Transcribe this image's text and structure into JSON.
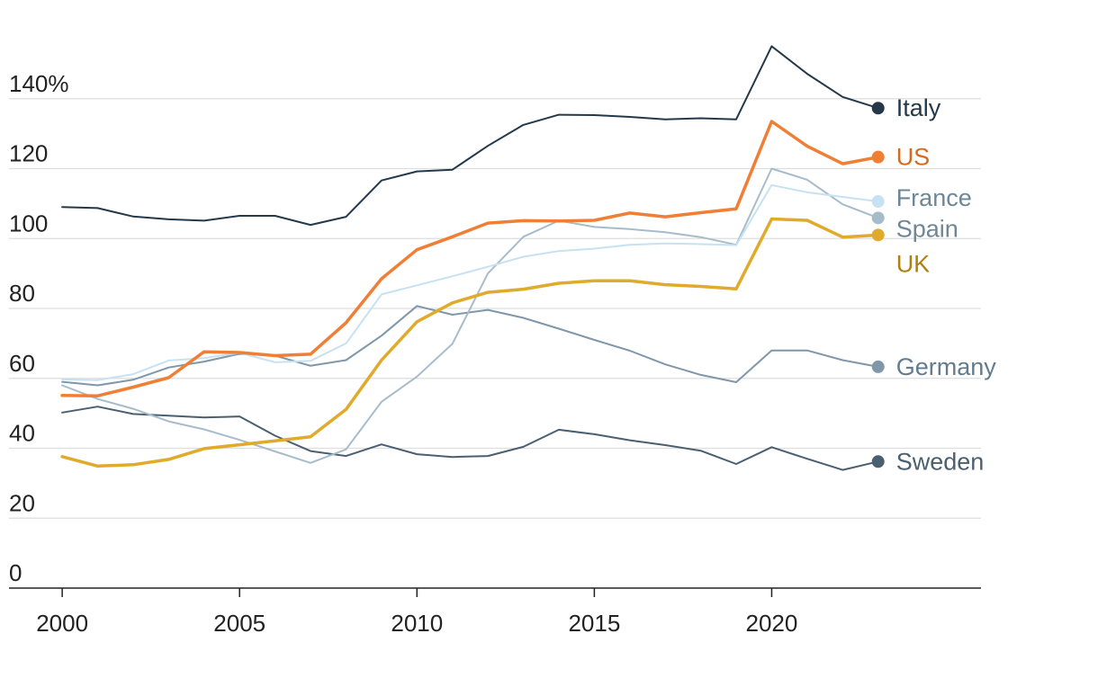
{
  "chart_data": {
    "type": "line",
    "title": "",
    "xlabel": "",
    "ylabel": "",
    "xlim": [
      1998.5,
      2025.9
    ],
    "ylim": [
      0,
      160
    ],
    "y_ticks": [
      {
        "value": 0,
        "label": "0"
      },
      {
        "value": 20,
        "label": "20"
      },
      {
        "value": 40,
        "label": "40"
      },
      {
        "value": 60,
        "label": "60"
      },
      {
        "value": 80,
        "label": "80"
      },
      {
        "value": 100,
        "label": "100"
      },
      {
        "value": 120,
        "label": "120"
      },
      {
        "value": 140,
        "label": "140%"
      }
    ],
    "x_ticks": [
      {
        "value": 2000,
        "label": "2000"
      },
      {
        "value": 2005,
        "label": "2005"
      },
      {
        "value": 2010,
        "label": "2010"
      },
      {
        "value": 2015,
        "label": "2015"
      },
      {
        "value": 2020,
        "label": "2020"
      }
    ],
    "grid": true,
    "legend": "direct labels at line ends",
    "x": [
      2000,
      2001,
      2002,
      2003,
      2004,
      2005,
      2006,
      2007,
      2008,
      2009,
      2010,
      2011,
      2012,
      2013,
      2014,
      2015,
      2016,
      2017,
      2018,
      2019,
      2020,
      2021,
      2022,
      2023
    ],
    "series": [
      {
        "name": "Italy",
        "color": "#23394a",
        "width": 2,
        "label_dy": 0,
        "values": [
          109,
          108.7,
          106.3,
          105.5,
          105.1,
          106.5,
          106.5,
          103.9,
          106.2,
          116.6,
          119.2,
          119.7,
          126.5,
          132.5,
          135.4,
          135.3,
          134.8,
          134.1,
          134.4,
          134.1,
          155.0,
          147.1,
          140.5,
          137.3
        ]
      },
      {
        "name": "US",
        "color": "#f07f35",
        "text_color": "#d46b1e",
        "width": 3.5,
        "label_dy": 0,
        "values": [
          55.1,
          55.0,
          57.5,
          60.2,
          67.6,
          67.4,
          66.5,
          66.9,
          75.9,
          88.5,
          96.8,
          100.5,
          104.4,
          105.1,
          105.0,
          105.2,
          107.3,
          106.2,
          107.4,
          108.5,
          133.5,
          126.4,
          121.4,
          123.3
        ]
      },
      {
        "name": "France",
        "color": "#c6e2f2",
        "text_color": "#6e8796",
        "width": 2,
        "label_dy": -4,
        "values": [
          59.7,
          59.5,
          61.2,
          65.1,
          65.8,
          67.3,
          64.6,
          65.0,
          70.0,
          84.0,
          86.6,
          89.2,
          91.9,
          94.8,
          96.4,
          97.1,
          98.2,
          98.6,
          98.4,
          98.1,
          115.3,
          113.2,
          111.9,
          110.6
        ]
      },
      {
        "name": "Spain",
        "color": "#a6bccb",
        "text_color": "#6e8796",
        "width": 2,
        "label_dy": 12,
        "values": [
          58.0,
          54.1,
          51.3,
          47.7,
          45.4,
          42.4,
          39.1,
          35.8,
          39.7,
          53.3,
          60.5,
          69.9,
          90.0,
          100.5,
          105.1,
          103.3,
          102.7,
          101.8,
          100.4,
          98.2,
          120.0,
          116.8,
          109.8,
          105.9
        ]
      },
      {
        "name": "UK",
        "color": "#e0aa2a",
        "text_color": "#b07f12",
        "width": 3.5,
        "label_dy": 32,
        "values": [
          37.6,
          34.9,
          35.3,
          36.8,
          39.9,
          41.0,
          42.1,
          43.3,
          51.1,
          65.2,
          76.2,
          81.6,
          84.6,
          85.5,
          87.2,
          87.9,
          87.9,
          86.8,
          86.3,
          85.6,
          105.6,
          105.2,
          100.4,
          101.0
        ]
      },
      {
        "name": "Germany",
        "color": "#7f97a9",
        "text_color": "#627b8f",
        "width": 2,
        "label_dy": 0,
        "values": [
          59.0,
          58.0,
          59.6,
          63.1,
          64.8,
          67.0,
          66.5,
          63.6,
          65.2,
          72.2,
          80.7,
          78.2,
          79.6,
          77.3,
          74.2,
          71.0,
          67.9,
          64.0,
          61.0,
          58.9,
          68.0,
          68.0,
          65.2,
          63.3
        ]
      },
      {
        "name": "Sweden",
        "color": "#4a5f70",
        "text_color": "#4a5f70",
        "width": 2,
        "label_dy": 0,
        "values": [
          50.2,
          51.9,
          49.8,
          49.3,
          48.8,
          49.1,
          43.6,
          39.2,
          37.8,
          41.1,
          38.3,
          37.5,
          37.8,
          40.4,
          45.3,
          44.0,
          42.3,
          40.9,
          39.3,
          35.5,
          40.3,
          37.0,
          33.8,
          36.2
        ]
      }
    ]
  }
}
